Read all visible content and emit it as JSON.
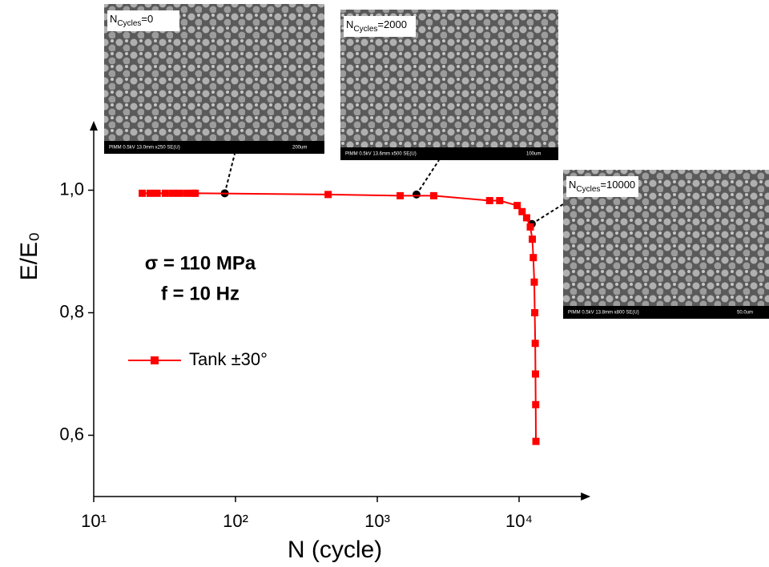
{
  "chart_data": {
    "type": "line",
    "x_label": "N (cycle)",
    "y_label": "E/E₀",
    "xscale": "log",
    "xlim": [
      10,
      28000
    ],
    "ylim": [
      0.5,
      1.1
    ],
    "xticks": [
      {
        "value": 10,
        "label": "10¹"
      },
      {
        "value": 100,
        "label": "10²"
      },
      {
        "value": 1000,
        "label": "10³"
      },
      {
        "value": 10000,
        "label": "10⁴"
      }
    ],
    "yticks": [
      {
        "value": 0.6,
        "label": "0,6"
      },
      {
        "value": 0.8,
        "label": "0,8"
      },
      {
        "value": 1.0,
        "label": "1,0"
      }
    ],
    "legend": "left",
    "series": [
      {
        "name": "Tank ±30°",
        "color": "#ff0000",
        "x": [
          22,
          25,
          28,
          32,
          36,
          40,
          45,
          50,
          52,
          450,
          1450,
          2500,
          6200,
          7300,
          9700,
          10500,
          11300,
          12000,
          12400,
          12600,
          12800,
          12900,
          13000,
          13050,
          13100,
          13150
        ],
        "values": [
          0.995,
          0.995,
          0.995,
          0.995,
          0.995,
          0.995,
          0.995,
          0.995,
          0.995,
          0.993,
          0.991,
          0.991,
          0.983,
          0.983,
          0.975,
          0.965,
          0.955,
          0.94,
          0.92,
          0.89,
          0.85,
          0.8,
          0.75,
          0.7,
          0.65,
          0.59
        ]
      }
    ],
    "annotations": [
      "σ = 110 MPa",
      "f = 10 Hz"
    ],
    "images": [
      {
        "label": "N",
        "sub": "Cycles",
        "suffix": "=0",
        "x": 84,
        "y": 0.995,
        "footer": "PIMM 0.5kV 13.0mm x250 SE(U)",
        "scale": "200um"
      },
      {
        "label": "N",
        "sub": "Cycles",
        "suffix": "=2000",
        "x": 1890,
        "y": 0.993,
        "footer": "PIMM 0.5kV 13.6mm x500 SE(U)",
        "scale": "100um"
      },
      {
        "label": "N",
        "sub": "Cycles",
        "suffix": "=10000",
        "x": 12300,
        "y": 0.945,
        "footer": "PIMM 0.5kV 13.8mm x800 SE(U)",
        "scale": "50.0um"
      }
    ]
  }
}
